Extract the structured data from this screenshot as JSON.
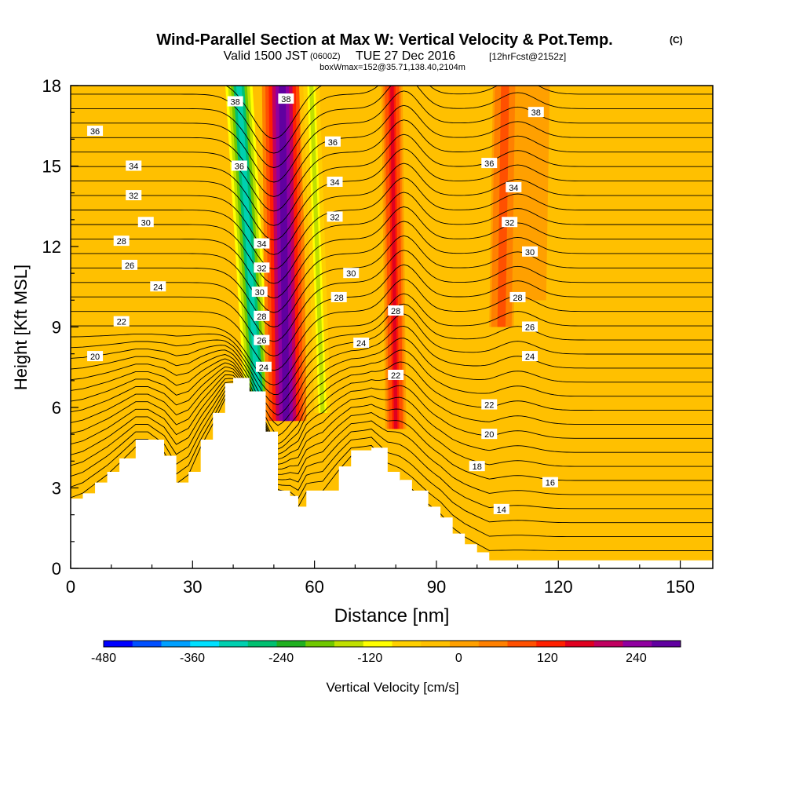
{
  "header": {
    "title": "Wind-Parallel Section at Max W: Vertical Velocity & Pot.Temp.",
    "copyright": "(C)",
    "subtitle_valid": "Valid 1500 JST",
    "subtitle_zulu": "(0600Z)",
    "subtitle_date": "TUE 27 Dec 2016",
    "subtitle_fcst": "[12hrFcst@2152z]",
    "box_info": "boxWmax=152@35.71,138.40,2104m"
  },
  "colors": {
    "background_field": "#ffc000",
    "terrain": "#ffffff",
    "contour": "#000000"
  },
  "chart_data": {
    "type": "heatmap",
    "title": "Wind-Parallel Section at Max W: Vertical Velocity & Pot.Temp.",
    "xlabel": "Distance [nm]",
    "ylabel": "Height [Kft MSL]",
    "xlim": [
      0,
      158
    ],
    "ylim": [
      0,
      18
    ],
    "x_ticks": [
      "0",
      "30",
      "60",
      "90",
      "120",
      "150"
    ],
    "x_tick_values": [
      0,
      30,
      60,
      90,
      120,
      150
    ],
    "y_ticks": [
      "0",
      "3",
      "6",
      "9",
      "12",
      "15",
      "18"
    ],
    "y_tick_values": [
      0,
      3,
      6,
      9,
      12,
      15,
      18
    ],
    "colorbar": {
      "label": "Vertical Velocity [cm/s]",
      "tick_labels": [
        "-480",
        "-360",
        "-240",
        "-120",
        "0",
        "120",
        "240"
      ],
      "tick_values": [
        -480,
        -360,
        -240,
        -120,
        0,
        120,
        240
      ],
      "min": -480,
      "max": 300,
      "colors": [
        "#0000ff",
        "#0050ff",
        "#00a0ff",
        "#00e0ff",
        "#00d0b0",
        "#00c070",
        "#20b020",
        "#70c800",
        "#c0e000",
        "#ffff00",
        "#ffd000",
        "#ffc000",
        "#ffa000",
        "#ff8000",
        "#ff5000",
        "#ff2000",
        "#e00020",
        "#c00060",
        "#9000a0",
        "#6000a0"
      ]
    },
    "terrain_profile": {
      "x": [
        0,
        3,
        6,
        9,
        12,
        16,
        19,
        23,
        26,
        29,
        32,
        35,
        38,
        40,
        44,
        48,
        51,
        54,
        56,
        58,
        62,
        66,
        69,
        74,
        78,
        81,
        84,
        88,
        91,
        94,
        97,
        100,
        103,
        112,
        120,
        158
      ],
      "y": [
        2.6,
        2.8,
        3.2,
        3.6,
        4.1,
        4.8,
        4.8,
        4.2,
        3.2,
        3.6,
        4.8,
        5.8,
        6.9,
        7.1,
        6.6,
        5.1,
        2.9,
        2.7,
        2.3,
        2.9,
        2.9,
        3.8,
        4.4,
        4.5,
        3.6,
        3.3,
        2.9,
        2.3,
        1.9,
        1.3,
        0.9,
        0.6,
        0.3,
        0.3,
        0.3,
        0.3
      ]
    },
    "wind_bands": [
      {
        "name": "downdraft",
        "value": -300,
        "x_bottom": 46,
        "x_top": 41,
        "width": 4,
        "z_bottom": 6.5
      },
      {
        "name": "updraft",
        "value": 280,
        "x_bottom": 53,
        "x_top": 52,
        "width": 5,
        "z_bottom": 5.5
      },
      {
        "name": "downdraft",
        "value": -130,
        "x_bottom": 62,
        "x_top": 59,
        "width": 3,
        "z_bottom": 5.8
      },
      {
        "name": "updraft",
        "value": 150,
        "x_bottom": 80,
        "x_top": 79,
        "width": 2.6,
        "z_bottom": 5.2
      },
      {
        "name": "updraft",
        "value": 90,
        "x_bottom": 106,
        "x_top": 107,
        "width": 3,
        "z_bottom": 9
      },
      {
        "name": "neutral",
        "value": 0,
        "x_bottom": 113,
        "x_top": 114,
        "width": 4,
        "z_bottom": 10
      }
    ],
    "theta_contour_labels": [
      {
        "x": 40.5,
        "y": 17.4,
        "text": "38"
      },
      {
        "x": 53,
        "y": 17.5,
        "text": "38"
      },
      {
        "x": 6,
        "y": 16.3,
        "text": "36"
      },
      {
        "x": 41.5,
        "y": 15.0,
        "text": "36"
      },
      {
        "x": 64.5,
        "y": 15.9,
        "text": "36"
      },
      {
        "x": 15.5,
        "y": 15.0,
        "text": "34"
      },
      {
        "x": 65,
        "y": 14.4,
        "text": "34"
      },
      {
        "x": 15.5,
        "y": 13.9,
        "text": "32"
      },
      {
        "x": 65,
        "y": 13.1,
        "text": "32"
      },
      {
        "x": 18.5,
        "y": 12.9,
        "text": "30"
      },
      {
        "x": 69,
        "y": 11.0,
        "text": "30"
      },
      {
        "x": 12.5,
        "y": 12.2,
        "text": "28"
      },
      {
        "x": 14.5,
        "y": 11.3,
        "text": "26"
      },
      {
        "x": 21.5,
        "y": 10.5,
        "text": "24"
      },
      {
        "x": 12.5,
        "y": 9.2,
        "text": "22"
      },
      {
        "x": 6,
        "y": 7.9,
        "text": "20"
      },
      {
        "x": 47,
        "y": 12.1,
        "text": "34"
      },
      {
        "x": 47,
        "y": 11.2,
        "text": "32"
      },
      {
        "x": 46.5,
        "y": 10.3,
        "text": "30"
      },
      {
        "x": 47,
        "y": 9.4,
        "text": "28"
      },
      {
        "x": 47,
        "y": 8.5,
        "text": "26"
      },
      {
        "x": 47.5,
        "y": 7.5,
        "text": "24"
      },
      {
        "x": 66,
        "y": 10.1,
        "text": "28"
      },
      {
        "x": 71.5,
        "y": 8.4,
        "text": "24"
      },
      {
        "x": 80,
        "y": 9.6,
        "text": "28"
      },
      {
        "x": 80,
        "y": 7.2,
        "text": "22"
      },
      {
        "x": 114.5,
        "y": 17.0,
        "text": "38"
      },
      {
        "x": 103,
        "y": 15.1,
        "text": "36"
      },
      {
        "x": 109,
        "y": 14.2,
        "text": "34"
      },
      {
        "x": 108,
        "y": 12.9,
        "text": "32"
      },
      {
        "x": 113,
        "y": 11.8,
        "text": "30"
      },
      {
        "x": 110,
        "y": 10.1,
        "text": "28"
      },
      {
        "x": 113,
        "y": 9.0,
        "text": "26"
      },
      {
        "x": 113,
        "y": 7.9,
        "text": "24"
      },
      {
        "x": 103,
        "y": 6.1,
        "text": "22"
      },
      {
        "x": 103,
        "y": 5.0,
        "text": "20"
      },
      {
        "x": 100,
        "y": 3.8,
        "text": "18"
      },
      {
        "x": 118,
        "y": 3.2,
        "text": "16"
      },
      {
        "x": 106,
        "y": 2.2,
        "text": "14"
      }
    ]
  }
}
